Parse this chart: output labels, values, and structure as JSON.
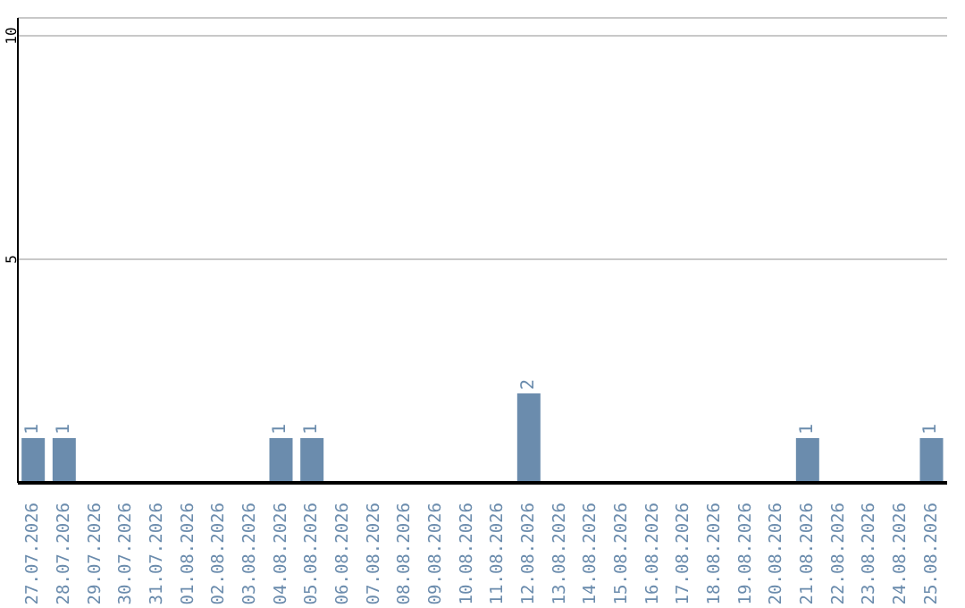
{
  "chart_data": {
    "type": "bar",
    "categories": [
      "27.07.2026",
      "28.07.2026",
      "29.07.2026",
      "30.07.2026",
      "31.07.2026",
      "01.08.2026",
      "02.08.2026",
      "03.08.2026",
      "04.08.2026",
      "05.08.2026",
      "06.08.2026",
      "07.08.2026",
      "08.08.2026",
      "09.08.2026",
      "10.08.2026",
      "11.08.2026",
      "12.08.2026",
      "13.08.2026",
      "14.08.2026",
      "15.08.2026",
      "16.08.2026",
      "17.08.2026",
      "18.08.2026",
      "19.08.2026",
      "20.08.2026",
      "21.08.2026",
      "22.08.2026",
      "23.08.2026",
      "24.08.2026",
      "25.08.2026"
    ],
    "values": [
      1,
      1,
      0,
      0,
      0,
      0,
      0,
      0,
      1,
      1,
      0,
      0,
      0,
      0,
      0,
      0,
      2,
      0,
      0,
      0,
      0,
      0,
      0,
      0,
      0,
      1,
      0,
      0,
      0,
      1
    ],
    "value_labels": [
      "1",
      "1",
      null,
      null,
      null,
      null,
      null,
      null,
      "1",
      "1",
      null,
      null,
      null,
      null,
      null,
      null,
      "2",
      null,
      null,
      null,
      null,
      null,
      null,
      null,
      null,
      "1",
      null,
      null,
      null,
      "1"
    ],
    "color": "#6b8cad",
    "ylim": [
      0,
      10.4
    ],
    "yticks": [
      5,
      10
    ],
    "grid": "y"
  }
}
